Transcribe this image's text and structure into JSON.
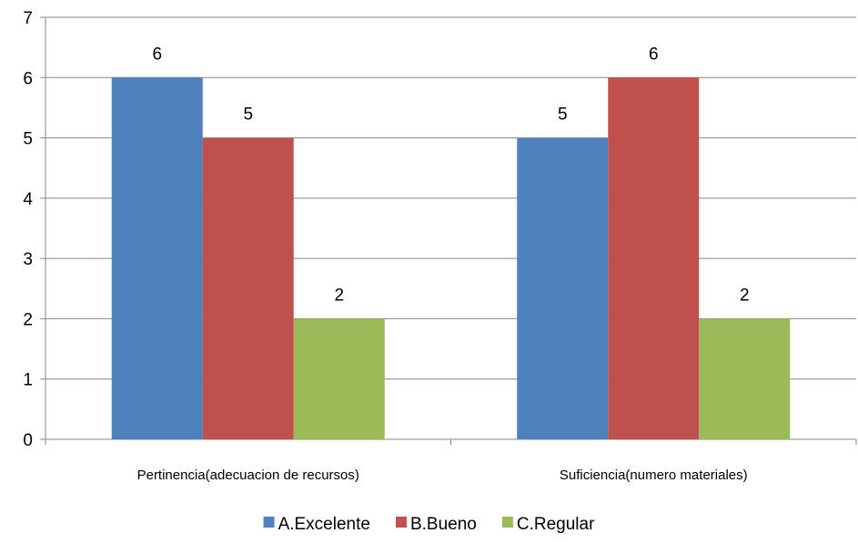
{
  "chart_data": {
    "type": "bar",
    "categories": [
      "Pertinencia(adecuacion de recursos)",
      "Suficiencia(numero materiales)"
    ],
    "series": [
      {
        "name": "A.Excelente",
        "values": [
          6,
          5
        ],
        "color": "#4F81BD"
      },
      {
        "name": "B.Bueno",
        "values": [
          5,
          6
        ],
        "color": "#C0504D"
      },
      {
        "name": "C.Regular",
        "values": [
          2,
          2
        ],
        "color": "#9BBB59"
      }
    ],
    "ylim": [
      0,
      7
    ],
    "yticks": [
      0,
      1,
      2,
      3,
      4,
      5,
      6,
      7
    ],
    "grid": true,
    "legend_position": "bottom",
    "data_labels": true
  }
}
